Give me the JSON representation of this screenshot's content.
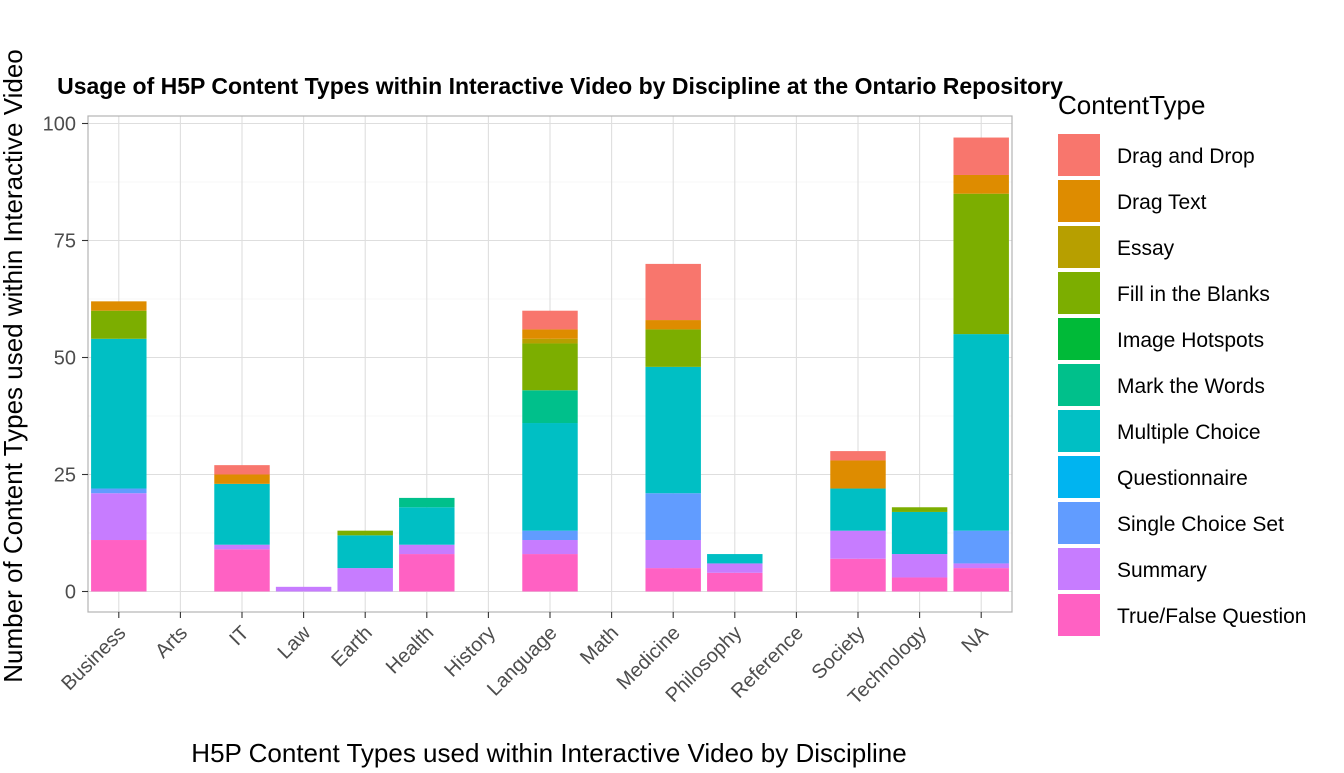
{
  "chart_data": {
    "type": "bar",
    "stacked": true,
    "title": "Usage of H5P Content Types within Interactive Video by Discipline at the Ontario Repository",
    "xlabel": "H5P Content Types used within Interactive Video by Discipline",
    "ylabel": "Number of Content Types used within Interactive Video",
    "ylim": [
      0,
      100
    ],
    "yticks": [
      0,
      25,
      50,
      75,
      100
    ],
    "grid": true,
    "legend_position": "right",
    "legend_title": "ContentType",
    "categories": [
      "Business",
      "Arts",
      "IT",
      "Law",
      "Earth",
      "Health",
      "History",
      "Language",
      "Math",
      "Medicine",
      "Philosophy",
      "Reference",
      "Society",
      "Technology",
      "NA"
    ],
    "series": [
      {
        "name": "Drag and Drop",
        "color": "#F8766D",
        "values": [
          0,
          0,
          2,
          0,
          0,
          0,
          0,
          4,
          0,
          12,
          0,
          0,
          2,
          0,
          8
        ]
      },
      {
        "name": "Drag Text",
        "color": "#DE8C00",
        "values": [
          2,
          0,
          2,
          0,
          0,
          0,
          0,
          2,
          0,
          2,
          0,
          0,
          6,
          0,
          4
        ]
      },
      {
        "name": "Essay",
        "color": "#B79F00",
        "values": [
          0,
          0,
          0,
          0,
          0,
          0,
          0,
          1,
          0,
          0,
          0,
          0,
          0,
          0,
          0
        ]
      },
      {
        "name": "Fill in the Blanks",
        "color": "#7CAE00",
        "values": [
          6,
          0,
          0,
          0,
          1,
          0,
          0,
          10,
          0,
          8,
          0,
          0,
          0,
          1,
          30
        ]
      },
      {
        "name": "Image Hotspots",
        "color": "#00BA38",
        "values": [
          0,
          0,
          0,
          0,
          0,
          0,
          0,
          0,
          0,
          0,
          0,
          0,
          0,
          0,
          0
        ]
      },
      {
        "name": "Mark the Words",
        "color": "#00C08B",
        "values": [
          0,
          0,
          0,
          0,
          0,
          2,
          0,
          7,
          0,
          0,
          0,
          0,
          0,
          0,
          0
        ]
      },
      {
        "name": "Multiple Choice",
        "color": "#00BFC4",
        "values": [
          32,
          0,
          13,
          0,
          7,
          8,
          0,
          23,
          0,
          27,
          2,
          0,
          9,
          9,
          42
        ]
      },
      {
        "name": "Questionnaire",
        "color": "#00B4F0",
        "values": [
          0,
          0,
          0,
          0,
          0,
          0,
          0,
          0,
          0,
          0,
          0,
          0,
          0,
          0,
          0
        ]
      },
      {
        "name": "Single Choice Set",
        "color": "#619CFF",
        "values": [
          1,
          0,
          0,
          0,
          0,
          0,
          0,
          2,
          0,
          10,
          0,
          0,
          0,
          0,
          7
        ]
      },
      {
        "name": "Summary",
        "color": "#C77CFF",
        "values": [
          10,
          0,
          1,
          1,
          5,
          2,
          0,
          3,
          0,
          6,
          2,
          0,
          6,
          5,
          1
        ]
      },
      {
        "name": "True/False Question",
        "color": "#FF61C3",
        "values": [
          11,
          0,
          9,
          0,
          0,
          8,
          0,
          8,
          0,
          5,
          4,
          0,
          7,
          3,
          5
        ]
      }
    ]
  }
}
